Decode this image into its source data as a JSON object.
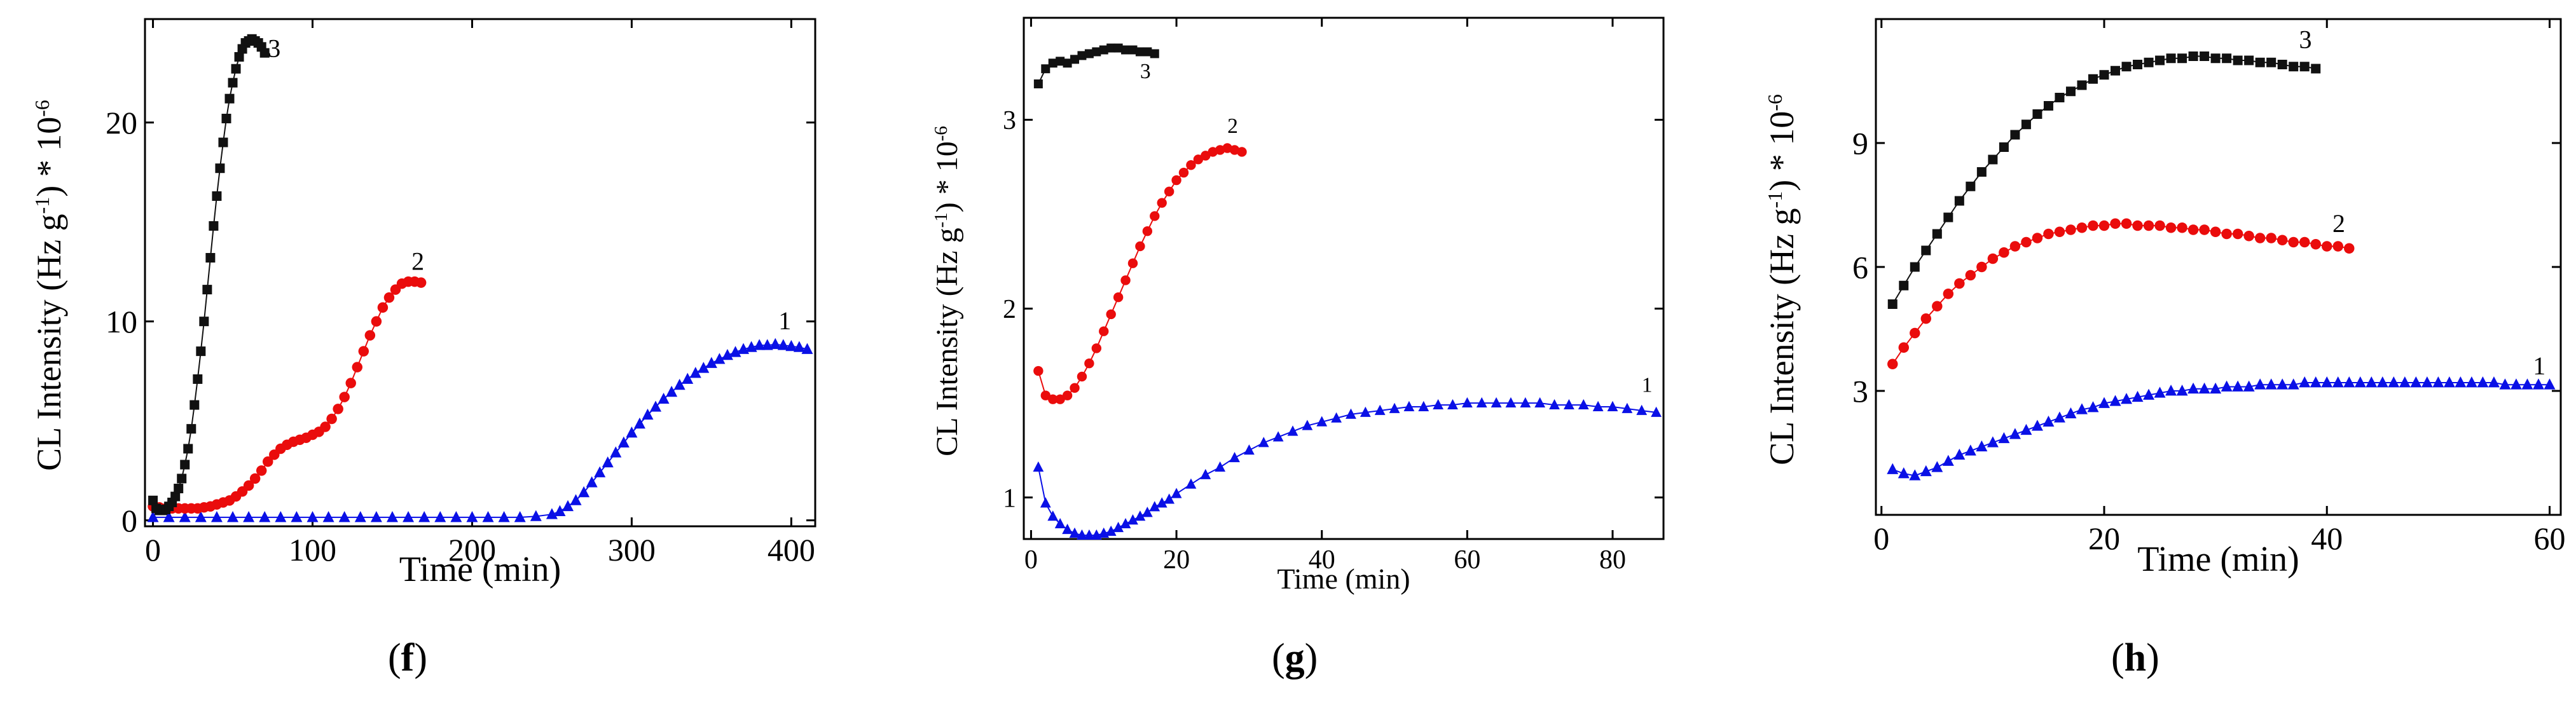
{
  "colors": {
    "s1": "#0a10e6",
    "s2": "#ea0c0c",
    "s3": "#111111",
    "axis": "#000000"
  },
  "chart_data": [
    {
      "id": "f",
      "type": "scatter",
      "panel_label": "f",
      "xlabel": "Time (min)",
      "ylabel": "CL Intensity (Hz g",
      "ylabel_sup": "-1",
      "ylabel_tail": ") * 10",
      "ylabel_exp": "-6",
      "xlim": [
        -5,
        415
      ],
      "ylim": [
        -0.3,
        25.2
      ],
      "xticks": [
        0,
        100,
        200,
        300,
        400
      ],
      "yticks": [
        0,
        10,
        20
      ],
      "series": [
        {
          "name": "1",
          "marker": "triangle",
          "color": "#0a10e6",
          "label_at": [
            392,
            9.6
          ],
          "x": [
            0,
            10,
            20,
            30,
            40,
            50,
            60,
            70,
            80,
            90,
            100,
            110,
            120,
            130,
            140,
            150,
            160,
            170,
            180,
            190,
            200,
            210,
            220,
            230,
            240,
            250,
            255,
            260,
            265,
            270,
            275,
            280,
            285,
            290,
            295,
            300,
            305,
            310,
            315,
            320,
            325,
            330,
            335,
            340,
            345,
            350,
            355,
            360,
            365,
            370,
            375,
            380,
            385,
            390,
            395,
            400,
            405,
            410
          ],
          "y": [
            0.15,
            0.15,
            0.15,
            0.15,
            0.15,
            0.15,
            0.15,
            0.15,
            0.15,
            0.15,
            0.15,
            0.15,
            0.15,
            0.15,
            0.15,
            0.15,
            0.15,
            0.15,
            0.15,
            0.15,
            0.15,
            0.15,
            0.15,
            0.15,
            0.2,
            0.3,
            0.45,
            0.7,
            1.0,
            1.4,
            1.9,
            2.4,
            2.9,
            3.4,
            3.9,
            4.4,
            4.85,
            5.3,
            5.7,
            6.1,
            6.45,
            6.8,
            7.1,
            7.4,
            7.65,
            7.9,
            8.1,
            8.3,
            8.45,
            8.6,
            8.7,
            8.8,
            8.8,
            8.85,
            8.8,
            8.75,
            8.7,
            8.6
          ]
        },
        {
          "name": "2",
          "marker": "circle",
          "color": "#ea0c0c",
          "label_at": [
            162,
            12.6
          ],
          "x": [
            0,
            4,
            8,
            12,
            16,
            20,
            24,
            28,
            32,
            36,
            40,
            44,
            48,
            52,
            56,
            60,
            64,
            68,
            72,
            76,
            80,
            84,
            88,
            92,
            96,
            100,
            104,
            108,
            112,
            116,
            120,
            124,
            128,
            132,
            136,
            140,
            144,
            148,
            152,
            156,
            160,
            164,
            168
          ],
          "y": [
            0.7,
            0.65,
            0.6,
            0.6,
            0.6,
            0.6,
            0.6,
            0.6,
            0.65,
            0.7,
            0.8,
            0.9,
            1.0,
            1.2,
            1.45,
            1.75,
            2.1,
            2.5,
            2.95,
            3.3,
            3.6,
            3.8,
            3.95,
            4.05,
            4.15,
            4.3,
            4.45,
            4.7,
            5.1,
            5.6,
            6.2,
            6.9,
            7.7,
            8.5,
            9.3,
            10.0,
            10.7,
            11.2,
            11.6,
            11.9,
            12.0,
            12.0,
            11.95
          ]
        },
        {
          "name": "3",
          "marker": "square",
          "color": "#111111",
          "label_at": [
            72,
            23.3
          ],
          "x": [
            0,
            2,
            4,
            6,
            8,
            10,
            12,
            14,
            16,
            18,
            20,
            22,
            24,
            26,
            28,
            30,
            32,
            34,
            36,
            38,
            40,
            42,
            44,
            46,
            48,
            50,
            52,
            54,
            56,
            58,
            60,
            62,
            64,
            66,
            68,
            70
          ],
          "y": [
            1.0,
            0.6,
            0.5,
            0.5,
            0.55,
            0.7,
            0.9,
            1.2,
            1.6,
            2.1,
            2.8,
            3.6,
            4.6,
            5.8,
            7.1,
            8.5,
            10.0,
            11.6,
            13.2,
            14.8,
            16.3,
            17.7,
            19.0,
            20.2,
            21.2,
            22.0,
            22.7,
            23.3,
            23.7,
            24.0,
            24.1,
            24.2,
            24.1,
            24.0,
            23.8,
            23.5
          ]
        }
      ]
    },
    {
      "id": "g",
      "type": "scatter",
      "panel_label": "g",
      "xlabel": "Time (min)",
      "ylabel": "CL Intensity (Hz g",
      "ylabel_sup": "-1",
      "ylabel_tail": ") * 10",
      "ylabel_exp": "-6",
      "xlim": [
        -1,
        87
      ],
      "ylim": [
        0.78,
        3.54
      ],
      "xticks": [
        0,
        20,
        40,
        60,
        80
      ],
      "yticks": [
        1,
        2,
        3
      ],
      "series": [
        {
          "name": "1",
          "marker": "triangle",
          "color": "#0a10e6",
          "label_at": [
            84,
            1.56
          ],
          "x": [
            1,
            2,
            3,
            4,
            5,
            6,
            7,
            8,
            9,
            10,
            11,
            12,
            13,
            14,
            15,
            16,
            17,
            18,
            19,
            20,
            22,
            24,
            26,
            28,
            30,
            32,
            34,
            36,
            38,
            40,
            42,
            44,
            46,
            48,
            50,
            52,
            54,
            56,
            58,
            60,
            62,
            64,
            66,
            68,
            70,
            72,
            74,
            76,
            78,
            80,
            82,
            84,
            86
          ],
          "y": [
            1.16,
            0.97,
            0.9,
            0.86,
            0.83,
            0.81,
            0.8,
            0.8,
            0.8,
            0.81,
            0.82,
            0.84,
            0.86,
            0.88,
            0.9,
            0.92,
            0.95,
            0.97,
            0.99,
            1.02,
            1.07,
            1.12,
            1.16,
            1.21,
            1.25,
            1.29,
            1.32,
            1.35,
            1.38,
            1.4,
            1.42,
            1.44,
            1.45,
            1.46,
            1.47,
            1.48,
            1.48,
            1.49,
            1.49,
            1.5,
            1.5,
            1.5,
            1.5,
            1.5,
            1.5,
            1.49,
            1.49,
            1.49,
            1.48,
            1.48,
            1.47,
            1.46,
            1.45
          ]
        },
        {
          "name": "2",
          "marker": "circle",
          "color": "#ea0c0c",
          "label_at": [
            27,
            2.93
          ],
          "x": [
            1,
            2,
            3,
            4,
            5,
            6,
            7,
            8,
            9,
            10,
            11,
            12,
            13,
            14,
            15,
            16,
            17,
            18,
            19,
            20,
            21,
            22,
            23,
            24,
            25,
            26,
            27,
            28,
            29
          ],
          "y": [
            1.67,
            1.54,
            1.52,
            1.52,
            1.54,
            1.58,
            1.64,
            1.71,
            1.79,
            1.88,
            1.97,
            2.06,
            2.15,
            2.24,
            2.33,
            2.41,
            2.49,
            2.56,
            2.62,
            2.68,
            2.72,
            2.76,
            2.79,
            2.81,
            2.83,
            2.84,
            2.85,
            2.84,
            2.83
          ]
        },
        {
          "name": "3",
          "marker": "square",
          "color": "#111111",
          "label_at": [
            15,
            3.22
          ],
          "x": [
            1,
            2,
            3,
            4,
            5,
            6,
            7,
            8,
            9,
            10,
            11,
            12,
            13,
            14,
            15,
            16,
            17
          ],
          "y": [
            3.19,
            3.27,
            3.3,
            3.31,
            3.3,
            3.32,
            3.34,
            3.35,
            3.36,
            3.37,
            3.38,
            3.38,
            3.37,
            3.37,
            3.36,
            3.36,
            3.35
          ]
        }
      ]
    },
    {
      "id": "h",
      "type": "scatter",
      "panel_label": "h",
      "xlabel": "Time (min)",
      "ylabel": "CL Intensity (Hz g",
      "ylabel_sup": "-1",
      "ylabel_tail": ") * 10",
      "ylabel_exp": "-6",
      "xlim": [
        -0.5,
        61
      ],
      "ylim": [
        0,
        12
      ],
      "xticks": [
        0,
        20,
        40,
        60
      ],
      "yticks": [
        3,
        6,
        9
      ],
      "series": [
        {
          "name": "1",
          "marker": "triangle",
          "color": "#0a10e6",
          "label_at": [
            58.5,
            3.4
          ],
          "x": [
            1,
            2,
            3,
            4,
            5,
            6,
            7,
            8,
            9,
            10,
            11,
            12,
            13,
            14,
            15,
            16,
            17,
            18,
            19,
            20,
            21,
            22,
            23,
            24,
            25,
            26,
            27,
            28,
            29,
            30,
            31,
            32,
            33,
            34,
            35,
            36,
            37,
            38,
            39,
            40,
            41,
            42,
            43,
            44,
            45,
            46,
            47,
            48,
            49,
            50,
            51,
            52,
            53,
            54,
            55,
            56,
            57,
            58,
            59,
            60
          ],
          "y": [
            1.1,
            1.0,
            0.95,
            1.05,
            1.15,
            1.3,
            1.45,
            1.55,
            1.65,
            1.75,
            1.85,
            1.95,
            2.05,
            2.15,
            2.25,
            2.35,
            2.45,
            2.55,
            2.6,
            2.7,
            2.75,
            2.8,
            2.85,
            2.9,
            2.95,
            3.0,
            3.0,
            3.05,
            3.05,
            3.05,
            3.1,
            3.1,
            3.1,
            3.15,
            3.15,
            3.15,
            3.15,
            3.2,
            3.2,
            3.2,
            3.2,
            3.2,
            3.2,
            3.2,
            3.2,
            3.2,
            3.2,
            3.2,
            3.2,
            3.2,
            3.2,
            3.2,
            3.2,
            3.2,
            3.2,
            3.15,
            3.15,
            3.15,
            3.15,
            3.15
          ]
        },
        {
          "name": "2",
          "marker": "circle",
          "color": "#ea0c0c",
          "label_at": [
            40.5,
            6.85
          ],
          "x": [
            1,
            2,
            3,
            4,
            5,
            6,
            7,
            8,
            9,
            10,
            11,
            12,
            13,
            14,
            15,
            16,
            17,
            18,
            19,
            20,
            21,
            22,
            23,
            24,
            25,
            26,
            27,
            28,
            29,
            30,
            31,
            32,
            33,
            34,
            35,
            36,
            37,
            38,
            39,
            40,
            41,
            42
          ],
          "y": [
            3.65,
            4.05,
            4.4,
            4.75,
            5.05,
            5.35,
            5.6,
            5.8,
            6.0,
            6.2,
            6.35,
            6.5,
            6.6,
            6.7,
            6.8,
            6.85,
            6.9,
            6.95,
            7.0,
            7.0,
            7.05,
            7.05,
            7.0,
            7.0,
            7.0,
            6.95,
            6.95,
            6.9,
            6.9,
            6.85,
            6.8,
            6.8,
            6.75,
            6.7,
            6.7,
            6.65,
            6.6,
            6.6,
            6.55,
            6.5,
            6.5,
            6.45
          ]
        },
        {
          "name": "3",
          "marker": "square",
          "color": "#111111",
          "label_at": [
            37.5,
            11.3
          ],
          "x": [
            1,
            2,
            3,
            4,
            5,
            6,
            7,
            8,
            9,
            10,
            11,
            12,
            13,
            14,
            15,
            16,
            17,
            18,
            19,
            20,
            21,
            22,
            23,
            24,
            25,
            26,
            27,
            28,
            29,
            30,
            31,
            32,
            33,
            34,
            35,
            36,
            37,
            38,
            39
          ],
          "y": [
            5.1,
            5.55,
            6.0,
            6.4,
            6.8,
            7.2,
            7.6,
            7.95,
            8.3,
            8.6,
            8.9,
            9.2,
            9.45,
            9.7,
            9.9,
            10.1,
            10.25,
            10.4,
            10.55,
            10.65,
            10.75,
            10.85,
            10.9,
            10.95,
            11.0,
            11.05,
            11.05,
            11.1,
            11.1,
            11.05,
            11.05,
            11.0,
            11.0,
            10.95,
            10.95,
            10.9,
            10.85,
            10.85,
            10.8
          ]
        }
      ]
    }
  ]
}
